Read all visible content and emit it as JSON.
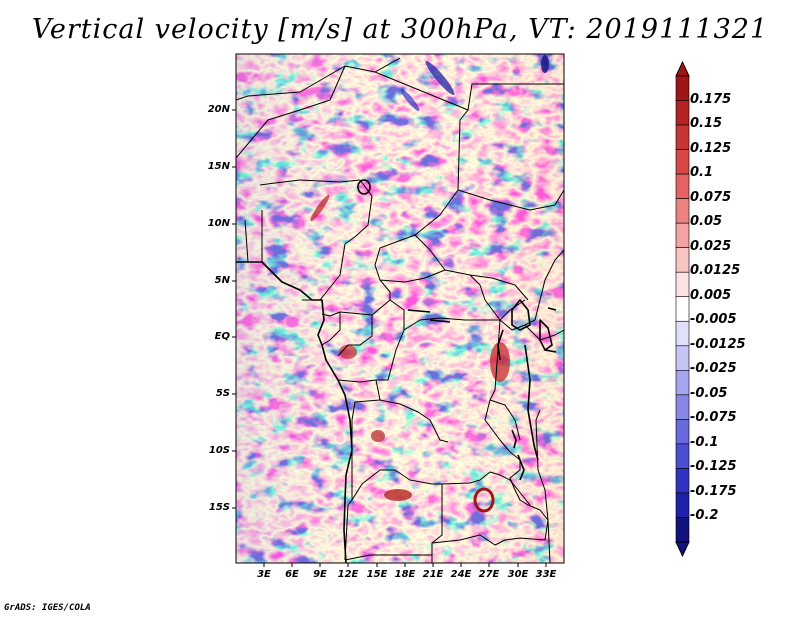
{
  "title": "Vertical velocity [m/s] at 300hPa, VT: 2019111321",
  "credit": "GrADS: IGES/COLA",
  "map": {
    "lat_labels": [
      "20N",
      "15N",
      "10N",
      "5N",
      "EQ",
      "5S",
      "10S",
      "15S"
    ],
    "lon_labels": [
      "3E",
      "6E",
      "9E",
      "12E",
      "15E",
      "18E",
      "21E",
      "24E",
      "27E",
      "30E",
      "33E"
    ]
  },
  "colorbar": {
    "labels": [
      "0.175",
      "0.15",
      "0.125",
      "0.1",
      "0.075",
      "0.05",
      "0.025",
      "0.0125",
      "0.005",
      "-0.005",
      "-0.0125",
      "-0.025",
      "-0.05",
      "-0.075",
      "-0.1",
      "-0.125",
      "-0.175",
      "-0.2"
    ],
    "colors": [
      "#a01515",
      "#b52222",
      "#c83535",
      "#d84848",
      "#e46262",
      "#ec8282",
      "#f3a3a3",
      "#f8c4c4",
      "#fce3e3",
      "#ffffff",
      "#e0e0fb",
      "#c4c4f5",
      "#a6a6ef",
      "#8787e6",
      "#6a6add",
      "#4d4dd2",
      "#3333c2",
      "#2020a8",
      "#12127f"
    ]
  }
}
